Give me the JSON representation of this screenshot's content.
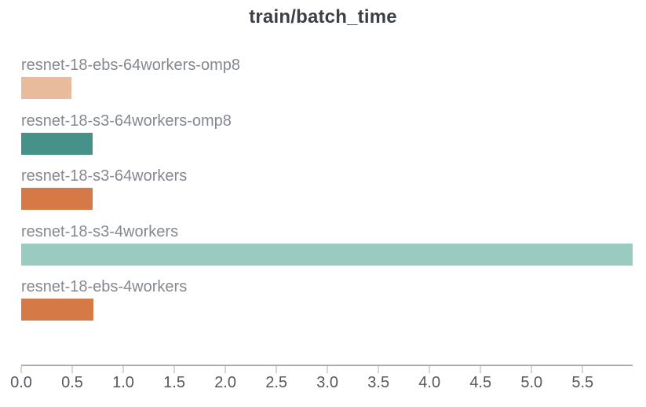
{
  "chart_data": {
    "type": "bar",
    "orientation": "horizontal",
    "title": "train/batch_time",
    "categories": [
      "resnet-18-ebs-64workers-omp8",
      "resnet-18-s3-64workers-omp8",
      "resnet-18-s3-64workers",
      "resnet-18-s3-4workers",
      "resnet-18-ebs-4workers"
    ],
    "values": [
      0.49,
      0.7,
      0.7,
      5.99,
      0.71
    ],
    "bar_colors": [
      "#e8bb9d",
      "#46918a",
      "#d57a47",
      "#99cbc0",
      "#d57a47"
    ],
    "xlabel": "",
    "ylabel": "",
    "xlim": [
      0,
      5.99
    ],
    "xticks": [
      0.0,
      0.5,
      1.0,
      1.5,
      2.0,
      2.5,
      3.0,
      3.5,
      4.0,
      4.5,
      5.0,
      5.5
    ],
    "xtick_labels": [
      "0.0",
      "0.5",
      "1.0",
      "1.5",
      "2.0",
      "2.5",
      "3.0",
      "3.5",
      "4.0",
      "4.5",
      "5.0",
      "5.5"
    ],
    "grid": false,
    "legend": false
  },
  "colors": {
    "background": "#ffffff",
    "title": "#3b3f46",
    "label": "#84888f",
    "tick_label": "#54585f",
    "axis_line": "#a9acb0"
  }
}
